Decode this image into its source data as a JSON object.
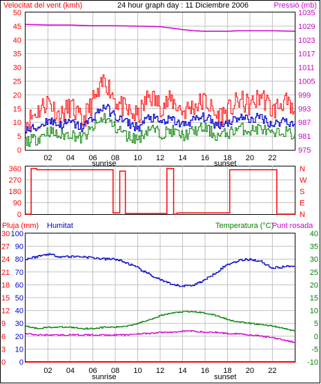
{
  "header": {
    "title": "24 hour graph day : 11 Diciembre 2006"
  },
  "colors": {
    "red": "#ff0000",
    "dark_red": "#cc0000",
    "blue": "#0000cc",
    "green": "#008000",
    "magenta": "#cc00cc",
    "grid": "#c0c0c0",
    "frame": "#000000"
  },
  "chart_data": [
    {
      "type": "line",
      "id": "wind_pressure",
      "title": "24 hour graph day : 11 Diciembre 2006",
      "left_axis_label": "Velocitat del vent (kmh)",
      "right_axis_label": "Pressió (mb)",
      "x_ticks": [
        "02",
        "04",
        "06",
        "08",
        "10",
        "12",
        "14",
        "16",
        "18",
        "20",
        "22"
      ],
      "x_annotations": [
        {
          "label": "sunrise",
          "hour": 7.0
        },
        {
          "label": "sunset",
          "hour": 17.8
        }
      ],
      "left_ticks": [
        "0",
        "5",
        "10",
        "15",
        "20",
        "25",
        "30",
        "35",
        "40",
        "45",
        "50"
      ],
      "right_ticks": [
        "975",
        "981",
        "987",
        "993",
        "999",
        "1005",
        "1011",
        "1017",
        "1023",
        "1029",
        "1035"
      ],
      "ylim_left": [
        0,
        50
      ],
      "ylim_right": [
        975,
        1035
      ],
      "series": [
        {
          "axis": "right",
          "color": "#cc00cc",
          "hours": [
            0,
            2,
            4,
            6,
            8,
            10,
            12,
            13,
            14,
            15,
            16,
            17,
            18,
            19,
            20,
            22,
            24
          ],
          "values": [
            1029.8,
            1029.5,
            1029.5,
            1029.2,
            1029.2,
            1029.0,
            1028.8,
            1028.2,
            1027.5,
            1027.0,
            1026.8,
            1026.8,
            1026.8,
            1027.0,
            1027.0,
            1027.0,
            1026.8
          ]
        },
        {
          "axis": "left",
          "color": "#ff0000",
          "style": "gust",
          "hours": [
            0,
            1,
            2,
            3,
            4,
            5,
            6,
            6.5,
            7,
            7.5,
            8,
            8.5,
            9,
            10,
            11,
            12,
            13,
            14,
            15,
            16,
            17,
            18,
            19,
            20,
            21,
            22,
            23,
            24
          ],
          "values": [
            10,
            14,
            18,
            12,
            16,
            10,
            18,
            20,
            26,
            22,
            18,
            16,
            14,
            12,
            20,
            16,
            18,
            14,
            16,
            18,
            12,
            14,
            18,
            16,
            20,
            14,
            18,
            12
          ]
        },
        {
          "axis": "left",
          "color": "#0000cc",
          "style": "average",
          "hours": [
            0,
            1,
            2,
            3,
            4,
            5,
            6,
            6.5,
            7,
            7.5,
            8,
            8.5,
            9,
            10,
            11,
            12,
            13,
            14,
            15,
            16,
            17,
            18,
            19,
            20,
            21,
            22,
            23,
            24
          ],
          "values": [
            7,
            8,
            11,
            9,
            10,
            8,
            12,
            14,
            16,
            14,
            12,
            11,
            10,
            8,
            12,
            10,
            11,
            9,
            11,
            12,
            9,
            10,
            12,
            11,
            12,
            9,
            11,
            9
          ]
        },
        {
          "axis": "left",
          "color": "#008000",
          "style": "minimum",
          "hours": [
            0,
            1,
            2,
            3,
            4,
            5,
            6,
            6.5,
            7,
            7.5,
            8,
            8.5,
            9,
            10,
            11,
            12,
            13,
            14,
            15,
            16,
            17,
            18,
            19,
            20,
            21,
            22,
            23,
            24
          ],
          "values": [
            3,
            4,
            7,
            5,
            6,
            4,
            8,
            10,
            12,
            10,
            8,
            7,
            5,
            4,
            8,
            6,
            7,
            5,
            7,
            8,
            5,
            6,
            8,
            7,
            8,
            5,
            7,
            5
          ]
        }
      ]
    },
    {
      "type": "line",
      "id": "wind_direction",
      "left_ticks": [
        "0",
        "90",
        "180",
        "270",
        "360"
      ],
      "right_ticks": [
        "N",
        "E",
        "S",
        "W",
        "N"
      ],
      "ylim_left": [
        0,
        360
      ],
      "series": [
        {
          "color": "#ff0000",
          "hours": [
            0,
            0.5,
            1,
            5,
            7.6,
            7.8,
            8.1,
            8.4,
            8.5,
            8.9,
            9.2,
            12.5,
            12.6,
            12.9,
            13.2,
            13.3,
            13.5,
            18,
            18.2,
            22.2,
            22.4,
            24
          ],
          "values": [
            0,
            360,
            350,
            350,
            350,
            10,
            10,
            340,
            340,
            5,
            5,
            5,
            360,
            360,
            0,
            0,
            10,
            10,
            350,
            350,
            0,
            0
          ]
        }
      ]
    },
    {
      "type": "line",
      "id": "rain_humidity_temp",
      "rain_label": "Pluja (mm)",
      "humidity_label": "Humitat",
      "temp_label": "Temperatura (°C)",
      "dew_label": "Punt rosada",
      "x_ticks": [
        "02",
        "04",
        "06",
        "08",
        "10",
        "12",
        "14",
        "16",
        "18",
        "20",
        "22"
      ],
      "x_annotations": [
        {
          "label": "sunrise",
          "hour": 7.0
        },
        {
          "label": "sunset",
          "hour": 17.8
        }
      ],
      "rain_ticks": [
        "0",
        "3",
        "6",
        "9",
        "12",
        "15",
        "18",
        "21",
        "24",
        "27",
        "30"
      ],
      "humidity_ticks": [
        "0",
        "10",
        "20",
        "30",
        "40",
        "50",
        "60",
        "70",
        "80",
        "90",
        "100"
      ],
      "temp_ticks": [
        "-10",
        "-5",
        "0",
        "5",
        "10",
        "15",
        "20",
        "25",
        "30",
        "35",
        "40"
      ],
      "ylim_rain": [
        0,
        30
      ],
      "ylim_humidity": [
        0,
        100
      ],
      "ylim_temp": [
        -10,
        40
      ],
      "series": [
        {
          "name": "Humitat",
          "axis": "humidity",
          "color": "#0000cc",
          "hours": [
            0,
            1,
            2,
            3,
            4,
            5,
            6,
            7,
            8,
            9,
            10,
            11,
            12,
            13,
            14,
            15,
            16,
            17,
            18,
            19,
            20,
            21,
            22,
            23,
            24
          ],
          "values": [
            80,
            82,
            84,
            82,
            82,
            82,
            81,
            80,
            80,
            77,
            73,
            68,
            64,
            60,
            59,
            60,
            64,
            70,
            76,
            79,
            80,
            78,
            73,
            74,
            75
          ]
        },
        {
          "name": "Temperatura",
          "axis": "temp",
          "color": "#008000",
          "hours": [
            0,
            1,
            2,
            3,
            4,
            5,
            6,
            7,
            8,
            9,
            10,
            11,
            12,
            13,
            14,
            15,
            16,
            17,
            18,
            19,
            20,
            21,
            22,
            23,
            24
          ],
          "values": [
            4,
            3,
            3.5,
            3.5,
            3.5,
            3,
            3,
            3.5,
            3.5,
            4,
            5,
            6.5,
            8,
            9,
            9.5,
            9.5,
            9,
            8,
            6.5,
            5.5,
            5,
            4.5,
            4,
            3,
            2
          ]
        },
        {
          "name": "Punt rosada",
          "axis": "temp",
          "color": "#cc00cc",
          "hours": [
            0,
            1,
            2,
            3,
            4,
            5,
            6,
            7,
            8,
            9,
            10,
            11,
            12,
            13,
            14,
            15,
            16,
            17,
            18,
            19,
            20,
            21,
            22,
            23,
            24
          ],
          "values": [
            1,
            0.5,
            0.5,
            0.5,
            0.5,
            0.5,
            0.5,
            0.5,
            0.5,
            0.5,
            1,
            1,
            1.5,
            1.5,
            2,
            2,
            1.5,
            1.5,
            1,
            1,
            0.5,
            0,
            -0.5,
            -1.5,
            -2.5
          ]
        },
        {
          "name": "Pluja",
          "axis": "rain",
          "color": "#ff0000",
          "hours": [
            0,
            24
          ],
          "values": [
            0,
            0
          ]
        }
      ]
    }
  ]
}
